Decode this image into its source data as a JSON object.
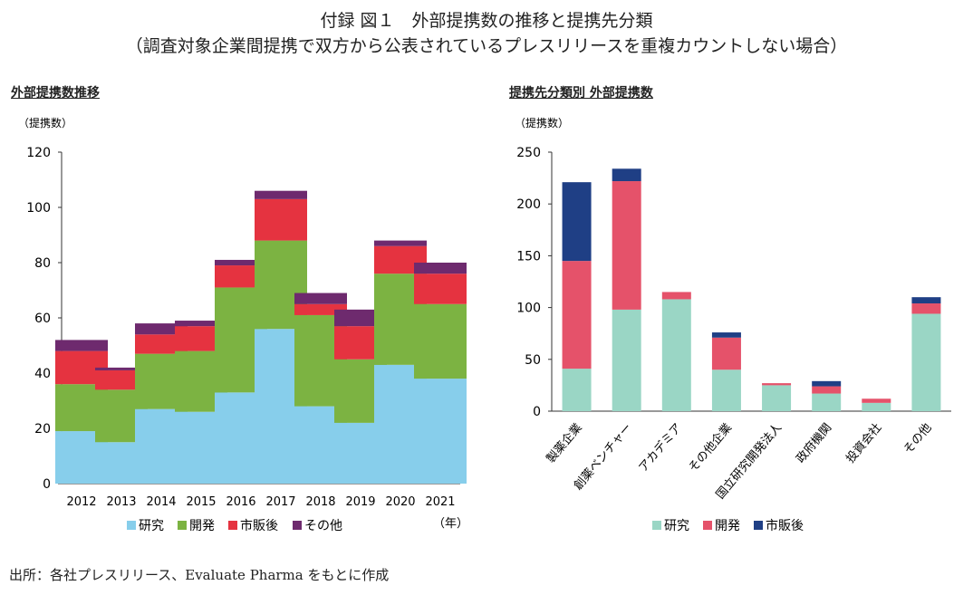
{
  "title": "付録 図１　外部提携数の推移と提携先分類",
  "subtitle": "（調査対象企業間提携で双方から公表されているプレスリリースを重複カウントしない場合）",
  "source": "出所：各社プレスリリース、Evaluate Pharma をもとに作成",
  "chart_data": [
    {
      "type": "bar",
      "stacked": true,
      "title": "外部提携数推移",
      "ylabel": "（提携数）",
      "xunit": "（年）",
      "ylim": [
        0,
        120
      ],
      "yticks": [
        0,
        20,
        40,
        60,
        80,
        100,
        120
      ],
      "categories": [
        "2012",
        "2013",
        "2014",
        "2015",
        "2016",
        "2017",
        "2018",
        "2019",
        "2020",
        "2021"
      ],
      "legend": "bottom",
      "series": [
        {
          "name": "研究",
          "color": "#87ceeb",
          "values": [
            19,
            15,
            27,
            26,
            33,
            56,
            28,
            22,
            43,
            38
          ]
        },
        {
          "name": "開発",
          "color": "#7cb342",
          "values": [
            17,
            19,
            20,
            22,
            38,
            32,
            33,
            23,
            33,
            27
          ]
        },
        {
          "name": "市販後",
          "color": "#e53340",
          "values": [
            12,
            7,
            7,
            9,
            8,
            15,
            4,
            12,
            10,
            11
          ]
        },
        {
          "name": "その他",
          "color": "#6e2a6e",
          "values": [
            4,
            1,
            4,
            2,
            2,
            3,
            4,
            6,
            2,
            4
          ]
        }
      ]
    },
    {
      "type": "bar",
      "stacked": true,
      "title": "提携先分類別 外部提携数",
      "ylabel": "（提携数）",
      "ylim": [
        0,
        250
      ],
      "yticks": [
        0,
        50,
        100,
        150,
        200,
        250
      ],
      "categories": [
        "製薬企業",
        "創薬ベンチャー",
        "アカデミア",
        "その他企業",
        "国立研究開発法人",
        "政府機関",
        "投資会社",
        "その他"
      ],
      "legend": "bottom",
      "series": [
        {
          "name": "研究",
          "color": "#9ad6c5",
          "values": [
            41,
            98,
            108,
            40,
            25,
            17,
            8,
            94
          ]
        },
        {
          "name": "開発",
          "color": "#e5526a",
          "values": [
            104,
            124,
            7,
            31,
            2,
            7,
            4,
            10
          ]
        },
        {
          "name": "市販後",
          "color": "#1f3f85",
          "values": [
            76,
            12,
            0,
            5,
            0,
            5,
            0,
            6
          ]
        }
      ]
    }
  ]
}
